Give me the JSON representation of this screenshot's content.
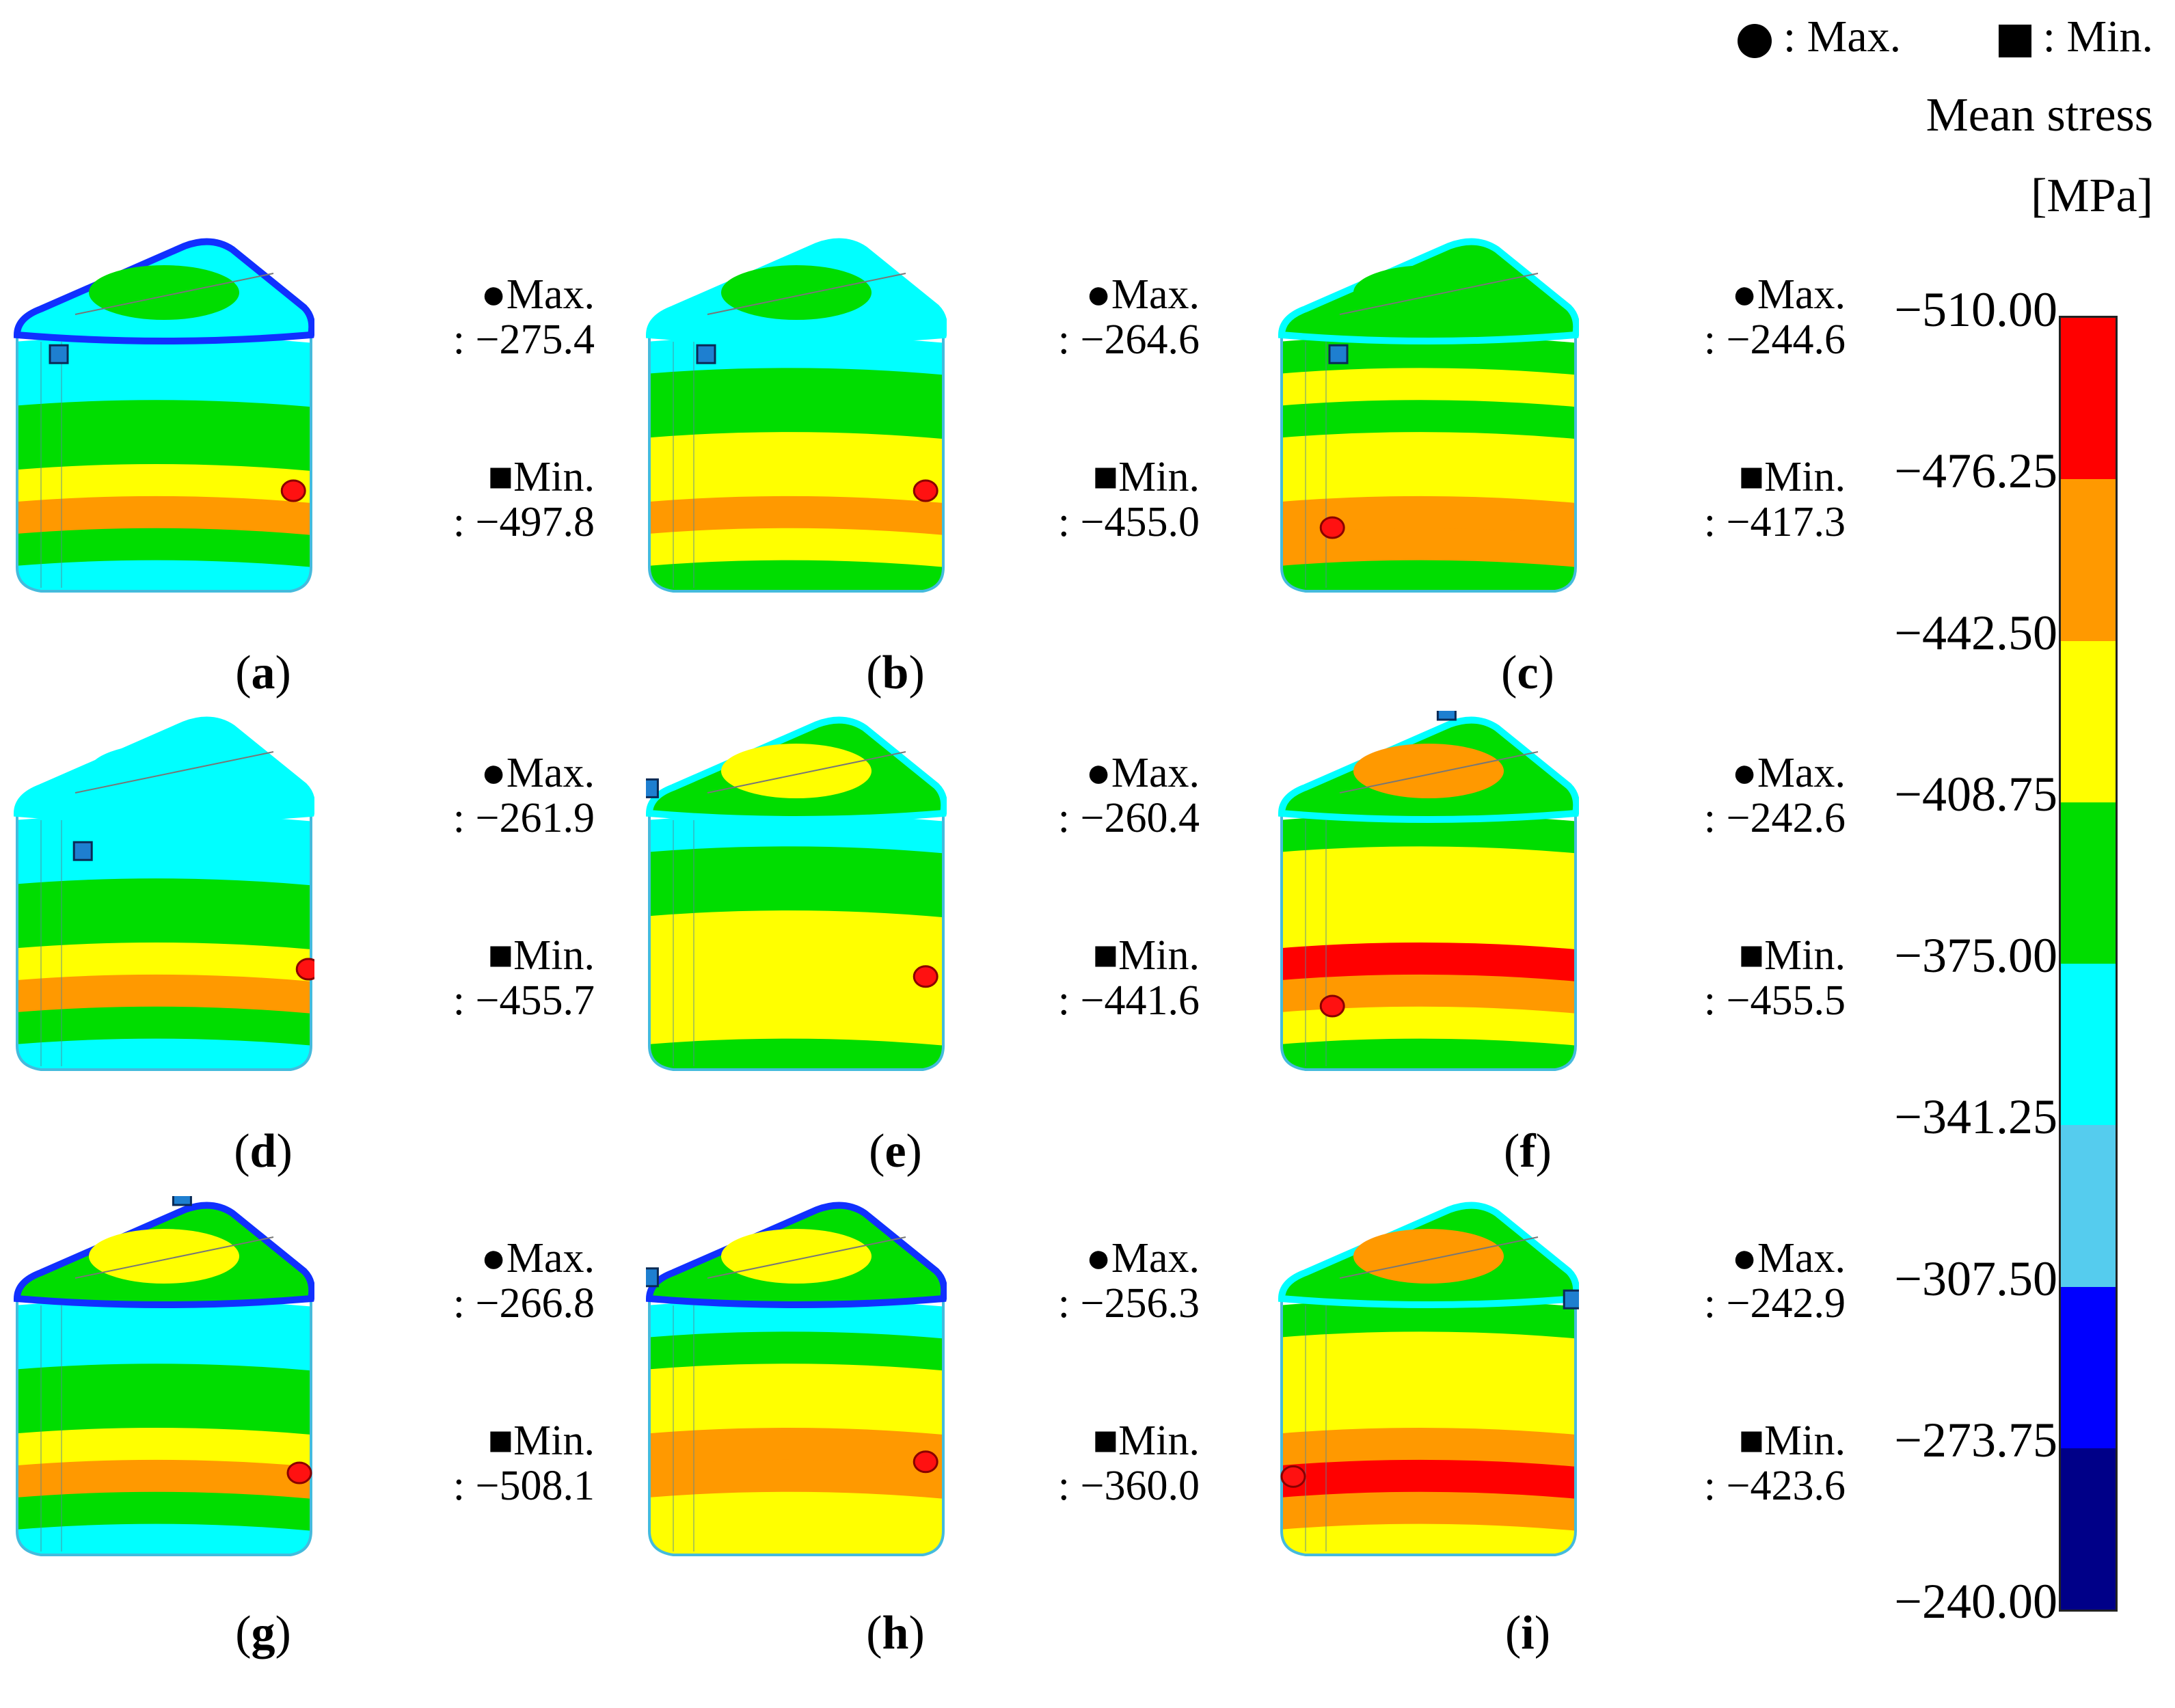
{
  "legend": {
    "max_symbol": "circle-icon",
    "max_label": ": Max.",
    "min_symbol": "square-icon",
    "min_label": ": Min."
  },
  "colorbar": {
    "title_line1": "Mean stress",
    "title_line2": "[MPa]",
    "ticks": [
      "-510.00",
      "-476.25",
      "-442.50",
      "-408.75",
      "-375.00",
      "-341.25",
      "-307.50",
      "-273.75",
      "-240.00"
    ],
    "colors": [
      "#ff0000",
      "#ff9900",
      "#ffff00",
      "#00dd00",
      "#00ffff",
      "#55ccee",
      "#0000ff",
      "#000088"
    ]
  },
  "panels": [
    {
      "label": "a",
      "max_label": "●Max.",
      "max_value": ": −275.4",
      "min_label": "■Min.",
      "min_value": ": −497.8"
    },
    {
      "label": "b",
      "max_label": "●Max.",
      "max_value": ": −264.6",
      "min_label": "■Min.",
      "min_value": ": −455.0"
    },
    {
      "label": "c",
      "max_label": "●Max.",
      "max_value": ": −244.6",
      "min_label": "■Min.",
      "min_value": ": −417.3"
    },
    {
      "label": "d",
      "max_label": "●Max.",
      "max_value": ": −261.9",
      "min_label": "■Min.",
      "min_value": ": −455.7"
    },
    {
      "label": "e",
      "max_label": "●Max.",
      "max_value": ": −260.4",
      "min_label": "■Min.",
      "min_value": ": −441.6"
    },
    {
      "label": "f",
      "max_label": "●Max.",
      "max_value": ": −242.6",
      "min_label": "■Min.",
      "min_value": ": −455.5"
    },
    {
      "label": "g",
      "max_label": "●Max.",
      "max_value": ": −266.8",
      "min_label": "■Min.",
      "min_value": ": −508.1"
    },
    {
      "label": "h",
      "max_label": "●Max.",
      "max_value": ": −256.3",
      "min_label": "■Min.",
      "min_value": ": −360.0"
    },
    {
      "label": "i",
      "max_label": "●Max.",
      "max_value": ": −242.9",
      "min_label": "■Min.",
      "min_value": ": −423.6"
    }
  ]
}
